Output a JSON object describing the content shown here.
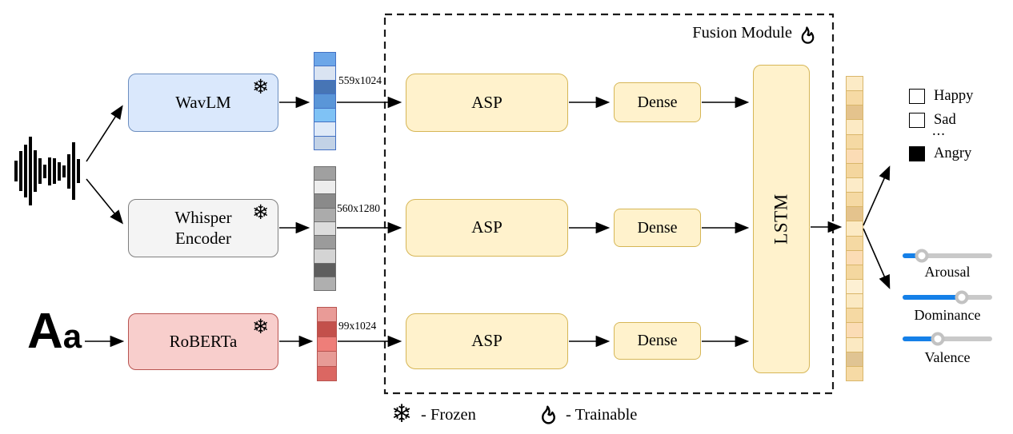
{
  "icons": {
    "snowflake": "❄"
  },
  "inputs": {
    "waveform_bars": [
      26,
      50,
      66,
      86,
      52,
      32,
      17,
      35,
      32,
      23,
      15,
      43,
      72,
      30
    ],
    "text_icon_big": "A",
    "text_icon_small": "a"
  },
  "encoders": [
    {
      "name": "WavLM",
      "line1": "WavLM",
      "line2": "",
      "fill": "#DAE8FC",
      "border": "#6C8EBF",
      "status": "frozen",
      "feature": {
        "dims": "559x1024",
        "border": "#4472C4",
        "cells": [
          "#6CA6E8",
          "#DAE4F2",
          "#4775B5",
          "#5A96D8",
          "#7FC2F5",
          "#DFEAF8",
          "#C2D2E6"
        ]
      }
    },
    {
      "name": "Whisper Encoder",
      "line1": "Whisper",
      "line2": "Encoder",
      "fill": "#F4F4F4",
      "border": "#7F7F7F",
      "status": "frozen",
      "feature": {
        "dims": "560x1280",
        "border": "#6E6E6E",
        "cells": [
          "#A0A0A0",
          "#EDEDED",
          "#8A8A8A",
          "#ABABAB",
          "#DCDCDC",
          "#9B9B9B",
          "#D4D4D4",
          "#5E5E5E",
          "#AFAFAF"
        ]
      }
    },
    {
      "name": "RoBERTa",
      "line1": "RoBERTa",
      "line2": "",
      "fill": "#F8CECC",
      "border": "#B85450",
      "status": "frozen",
      "feature": {
        "dims": "99x1024",
        "border": "#B85450",
        "cells": [
          "#E99B97",
          "#C3504B",
          "#EE7E79",
          "#E79B96",
          "#DB6762"
        ]
      }
    }
  ],
  "fusion": {
    "title": "Fusion Module",
    "asp": "ASP",
    "dense": "Dense",
    "lstm": "LSTM",
    "box_fill": "#FFF2CC",
    "box_border": "#D6B656",
    "status": "trainable"
  },
  "output_vector": {
    "border": "#D9B66A",
    "cells": [
      "#FCEBC6",
      "#F6DAA5",
      "#E4C38D",
      "#FCEAC4",
      "#F5D9A3",
      "#FBDCB5",
      "#F4D69E",
      "#FCEBC8",
      "#F5D9A3",
      "#E4C38D",
      "#FCEAC4",
      "#F5D9A3",
      "#FBDCB5",
      "#F4D79F",
      "#FDF0D3",
      "#FBE9C2",
      "#F5D9A3",
      "#FBDCB5",
      "#FBE9C2",
      "#E0C493",
      "#F6DAA5"
    ]
  },
  "emotions": [
    {
      "label": "Happy",
      "swatch": "#FFFFFF"
    },
    {
      "label": "Sad",
      "swatch": "#FFFFFF"
    },
    {
      "label": "..."
    },
    {
      "label": "Angry",
      "swatch": "#000000"
    }
  ],
  "dimensions": {
    "accent": "#1580E8",
    "track": "#C9C9C9",
    "sliders": [
      {
        "label": "Arousal",
        "percent": 21
      },
      {
        "label": "Dominance",
        "percent": 66
      },
      {
        "label": "Valence",
        "percent": 39
      }
    ]
  },
  "legend": {
    "frozen": "- Frozen",
    "trainable": "- Trainable"
  }
}
